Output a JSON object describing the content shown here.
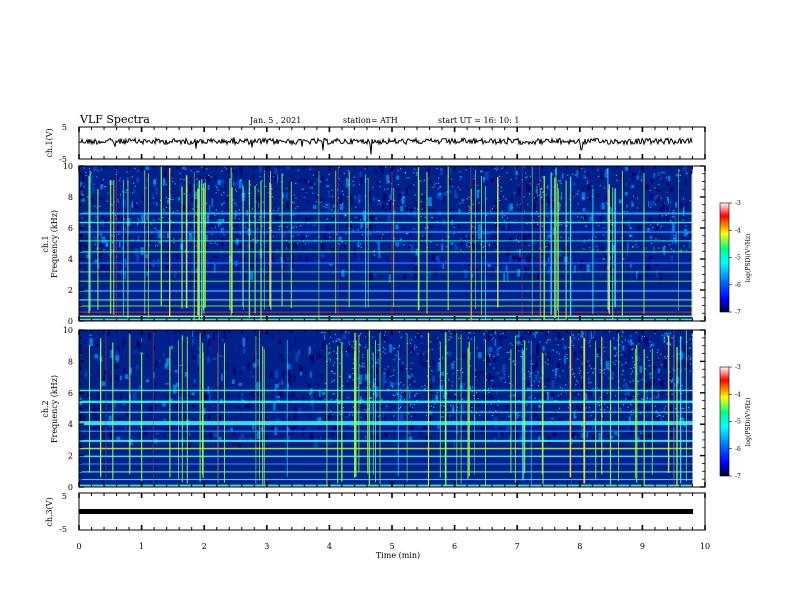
{
  "header": {
    "title": "VLF Spectra",
    "date": "Jan. 5 , 2021",
    "station": "station= ATH",
    "start": "start UT = 16: 10: 1"
  },
  "colors": {
    "spectrogram_base": "#00208c",
    "colormap": [
      "#000040",
      "#0000ff",
      "#0080ff",
      "#00ffff",
      "#00ff80",
      "#ffff00",
      "#ff0000",
      "#ffffff"
    ]
  },
  "chart_data": [
    {
      "type": "line",
      "name": "ch1-waveform",
      "ylabel": "ch.1(V)",
      "yticks": [
        "5",
        "-5"
      ],
      "ylim": [
        -5,
        5
      ]
    },
    {
      "type": "heatmap",
      "name": "ch1-spectrogram",
      "ylabel_line1": "ch.1",
      "ylabel_line2": "Frequency (kHz)",
      "yticks": [
        "0",
        "2",
        "4",
        "6",
        "8",
        "10"
      ],
      "ylim": [
        0,
        10
      ],
      "colorbar": {
        "label": "log(PSD)(V²/Hz)",
        "ticks": [
          "-3",
          "-4",
          "-5",
          "-6",
          "-7"
        ]
      }
    },
    {
      "type": "heatmap",
      "name": "ch2-spectrogram",
      "ylabel_line1": "ch.2",
      "ylabel_line2": "Frequency (kHz)",
      "yticks": [
        "0",
        "2",
        "4",
        "6",
        "8",
        "10"
      ],
      "ylim": [
        0,
        10
      ],
      "colorbar": {
        "label": "log(PSD)(V²/Hz)",
        "ticks": [
          "-3",
          "-4",
          "-5",
          "-6",
          "-7"
        ]
      }
    },
    {
      "type": "line",
      "name": "ch3-waveform",
      "ylabel": "ch.3(V)",
      "yticks": [
        "5",
        "-5"
      ],
      "ylim": [
        -5,
        5
      ]
    }
  ],
  "xaxis": {
    "label": "Time (min)",
    "ticks": [
      "0",
      "1",
      "2",
      "3",
      "4",
      "5",
      "6",
      "7",
      "8",
      "9",
      "10"
    ],
    "xlim": [
      0,
      10
    ]
  }
}
